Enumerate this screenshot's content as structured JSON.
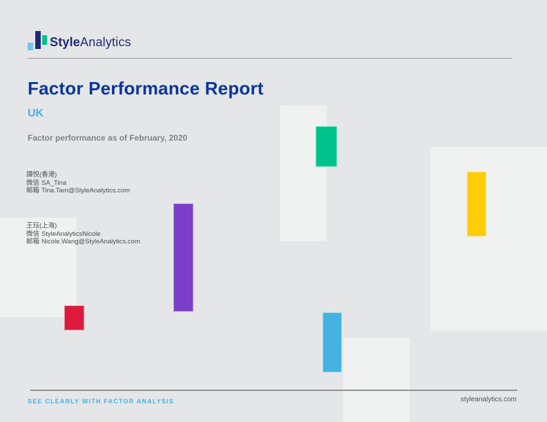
{
  "logo": {
    "brand_bold": "Style",
    "brand_regular": "Analytics"
  },
  "title": "Factor Performance Report",
  "region": "UK",
  "subtitle": "Factor performance as of February, 2020",
  "contacts": [
    {
      "name": "譚悦(香港)",
      "wechat_label": "微信",
      "wechat": "SA_Tina",
      "email_label": "邮箱",
      "email": "Tina.Tam@StyleAnalytics.com"
    },
    {
      "name": "王珏(上海)",
      "wechat_label": "微信",
      "wechat": "StyleAnalyticsNicole",
      "email_label": "邮箱",
      "email": "Nicole.Wang@StyleAnalytics.com"
    }
  ],
  "footer": {
    "tagline": "SEE CLEARLY WITH FACTOR ANALYSIS",
    "website": "styleanalytics.com"
  },
  "colors": {
    "background": "#e5e6e8",
    "panel": "#f0f1f1",
    "logo_navy": "#1f2a7a",
    "logo_green": "#00c28b",
    "logo_lightblue": "#6ec6ee",
    "title_blue": "#0a35a0",
    "accent_blue": "#45b2e8",
    "bar_green": "#00c28b",
    "bar_purple": "#7a3ec9",
    "bar_red": "#dd1a3e",
    "bar_blue": "#45b2e2",
    "bar_yellow": "#ffcd05"
  }
}
